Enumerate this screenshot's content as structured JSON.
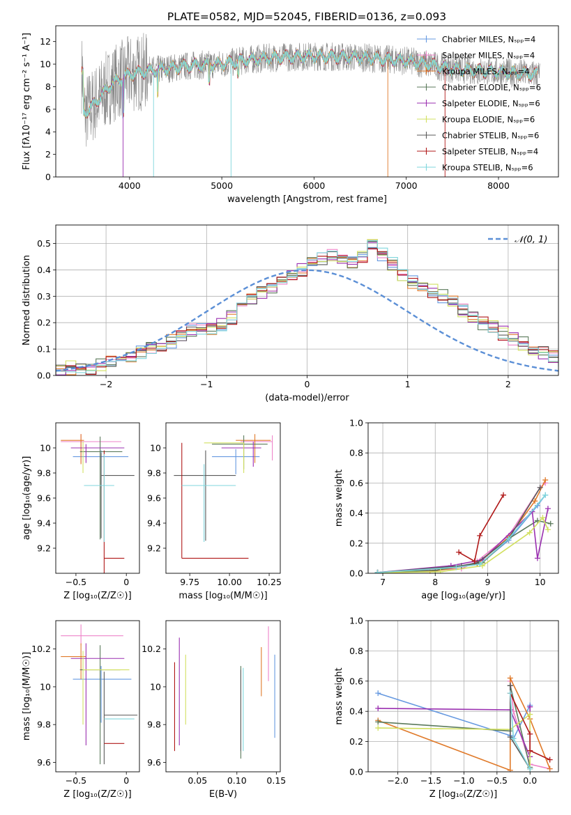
{
  "figure_title": "PLATE=0582, MJD=52045, FIBERID=0136, z=0.093",
  "colors": [
    "#6699e0",
    "#ee82c8",
    "#e07a2a",
    "#5b7a5b",
    "#9a2fb0",
    "#d2e060",
    "#5a5a5a",
    "#b01818",
    "#7fd6dc"
  ],
  "chart_data": [
    {
      "id": "spectrum",
      "type": "line",
      "xlabel": "wavelength [Angstrom, rest frame]",
      "ylabel": "Flux [fλ10⁻¹⁷ erg cm⁻² s⁻¹ A⁻¹]",
      "xlim": [
        3200,
        8650
      ],
      "ylim": [
        0,
        13.4
      ],
      "xticks": [
        4000,
        5000,
        6000,
        7000,
        8000
      ],
      "yticks": [
        0,
        2,
        4,
        6,
        8,
        10,
        12
      ],
      "grid": false,
      "legend_position": "top-right",
      "series": [
        {
          "name": "Chabrier MILES, Nₛₚₚ=4"
        },
        {
          "name": "Salpeter MILES, Nₛₚₚ=4"
        },
        {
          "name": "Kroupa MILES, Nₛₚₚ=4"
        },
        {
          "name": "Chabrier ELODIE, Nₛₚₚ=6"
        },
        {
          "name": "Salpeter ELODIE, Nₛₚₚ=6"
        },
        {
          "name": "Kroupa ELODIE, Nₛₚₚ=6"
        },
        {
          "name": "Chabrier STELIB, Nₛₚₚ=6"
        },
        {
          "name": "Salpeter STELIB, Nₛₚₚ=4"
        },
        {
          "name": "Kroupa STELIB, Nₛₚₚ=6"
        }
      ],
      "continuum": {
        "x": [
          3500,
          3600,
          3800,
          4000,
          4300,
          4700,
          5000,
          5300,
          5600,
          6000,
          6500,
          7000,
          7300,
          7500,
          7800,
          8000,
          8200,
          8400
        ],
        "y": [
          5.6,
          6.3,
          8.2,
          9.1,
          9.5,
          9.9,
          10.0,
          10.4,
          10.6,
          10.7,
          10.6,
          10.3,
          9.9,
          9.6,
          9.4,
          9.3,
          9.2,
          9.1
        ]
      }
    },
    {
      "id": "residuals",
      "type": "step",
      "xlabel": "(data-model)/error",
      "ylabel": "Normed distribution",
      "xlim": [
        -2.5,
        2.5
      ],
      "ylim": [
        0,
        0.57
      ],
      "xticks": [
        -2,
        -1,
        0,
        1,
        2
      ],
      "yticks": [
        0.0,
        0.1,
        0.2,
        0.3,
        0.4,
        0.5
      ],
      "grid": true,
      "legend_position": "top-right",
      "reference": {
        "name": "𝒩(0, 1)",
        "mean": 0,
        "sigma": 1
      },
      "bin_edges_start": -2.5,
      "bin_width": 0.1,
      "base_hist": [
        0.02,
        0.03,
        0.03,
        0.03,
        0.04,
        0.05,
        0.06,
        0.07,
        0.09,
        0.11,
        0.12,
        0.13,
        0.15,
        0.17,
        0.17,
        0.18,
        0.19,
        0.22,
        0.27,
        0.29,
        0.32,
        0.34,
        0.36,
        0.38,
        0.4,
        0.42,
        0.44,
        0.45,
        0.44,
        0.43,
        0.45,
        0.5,
        0.46,
        0.42,
        0.38,
        0.35,
        0.33,
        0.32,
        0.3,
        0.28,
        0.25,
        0.22,
        0.2,
        0.18,
        0.16,
        0.14,
        0.12,
        0.1,
        0.09,
        0.07,
        0.06,
        0.05,
        0.04,
        0.03,
        0.03,
        0.02,
        0.02,
        0.02,
        0.02,
        0.02
      ]
    },
    {
      "id": "age-vs-Z",
      "type": "errorbar",
      "xlabel": "Z [log₁₀(Z/Z☉)]",
      "ylabel": "age  [log₁₀(age/yr)]",
      "xlim": [
        -0.7,
        0.13
      ],
      "ylim": [
        9.0,
        10.2
      ],
      "xticks": [
        -0.5,
        0.0
      ],
      "yticks": [
        9.2,
        9.4,
        9.6,
        9.8,
        10.0
      ],
      "points": [
        {
          "x": -0.25,
          "y": 9.93,
          "xerr": [
            0.28,
            0.27
          ],
          "yerr": [
            0.25,
            0.05
          ]
        },
        {
          "x": -0.45,
          "y": 10.05,
          "xerr": [
            0.2,
            0.4
          ],
          "yerr": [
            0.17,
            0.06
          ]
        },
        {
          "x": -0.45,
          "y": 10.06,
          "xerr": [
            0.2,
            0.03
          ],
          "yerr": [
            0.19,
            0.05
          ]
        },
        {
          "x": -0.26,
          "y": 9.97,
          "xerr": [
            0.2,
            0.22
          ],
          "yerr": [
            0.7,
            0.12
          ]
        },
        {
          "x": -0.4,
          "y": 10.0,
          "xerr": [
            0.15,
            0.38
          ],
          "yerr": [
            0.12,
            0.03
          ]
        },
        {
          "x": -0.43,
          "y": 9.9,
          "xerr": [
            0.0,
            0.0
          ],
          "yerr": [
            0.1,
            0.15
          ]
        },
        {
          "x": -0.25,
          "y": 9.78,
          "xerr": [
            0.0,
            0.33
          ],
          "yerr": [
            0.5,
            0.18
          ]
        },
        {
          "x": -0.22,
          "y": 9.12,
          "xerr": [
            0.0,
            0.2
          ],
          "yerr": [
            0.2,
            0.86
          ]
        },
        {
          "x": -0.22,
          "y": 9.7,
          "xerr": [
            0.2,
            0.1
          ],
          "yerr": [
            0.45,
            0.25
          ]
        }
      ]
    },
    {
      "id": "age-vs-mass",
      "type": "errorbar",
      "xlabel": "mass [log₁₀(M/M☉)]",
      "ylabel": "",
      "xlim": [
        9.6,
        10.32
      ],
      "ylim": [
        9.0,
        10.2
      ],
      "xticks": [
        9.75,
        10.0,
        10.25
      ],
      "xticklabels": [
        "9.75",
        "10.00",
        "10.25"
      ],
      "yticks": [
        9.2,
        9.4,
        9.6,
        9.8,
        10.0
      ],
      "points": [
        {
          "x": 10.04,
          "y": 9.93,
          "xerr": [
            0.15,
            0.15
          ],
          "yerr": [
            0.14,
            0.06
          ]
        },
        {
          "x": 10.27,
          "y": 10.05,
          "xerr": [
            0.2,
            0.0
          ],
          "yerr": [
            0.15,
            0.05
          ]
        },
        {
          "x": 10.16,
          "y": 10.06,
          "xerr": [
            0.12,
            0.1
          ],
          "yerr": [
            0.18,
            0.05
          ]
        },
        {
          "x": 10.09,
          "y": 10.03,
          "xerr": [
            0.2,
            0.15
          ],
          "yerr": [
            0.2,
            0.07
          ]
        },
        {
          "x": 10.15,
          "y": 10.0,
          "xerr": [
            0.2,
            0.05
          ],
          "yerr": [
            0.15,
            0.05
          ]
        },
        {
          "x": 10.09,
          "y": 10.04,
          "xerr": [
            0.25,
            0.0
          ],
          "yerr": [
            0.24,
            0.0
          ]
        },
        {
          "x": 9.85,
          "y": 9.78,
          "xerr": [
            0.2,
            0.19
          ],
          "yerr": [
            0.52,
            0.2
          ]
        },
        {
          "x": 9.7,
          "y": 9.12,
          "xerr": [
            0.0,
            0.42
          ],
          "yerr": [
            0.0,
            0.92
          ]
        },
        {
          "x": 9.84,
          "y": 9.7,
          "xerr": [
            0.14,
            0.2
          ],
          "yerr": [
            0.45,
            0.17
          ]
        }
      ]
    },
    {
      "id": "massweight-vs-age",
      "type": "line",
      "xlabel": "age  [log₁₀(age/yr)]",
      "ylabel": "mass weight",
      "xlim": [
        6.72,
        10.35
      ],
      "ylim": [
        0.0,
        1.0
      ],
      "xticks": [
        7,
        8,
        9,
        10
      ],
      "yticks": [
        0.0,
        0.2,
        0.4,
        0.6,
        0.8,
        1.0
      ],
      "grid": true,
      "series": [
        {
          "x": [
            6.9,
            8.4,
            8.85,
            9.4,
            9.95,
            10.1
          ],
          "y": [
            0.005,
            0.04,
            0.06,
            0.22,
            0.45,
            0.52
          ]
        },
        {
          "x": [
            6.9,
            8.5,
            8.8,
            9.4,
            10.0,
            10.1
          ],
          "y": [
            0.005,
            0.03,
            0.08,
            0.25,
            0.57,
            0.6
          ]
        },
        {
          "x": [
            6.9,
            7.9,
            8.8,
            9.4,
            9.9,
            10.1
          ],
          "y": [
            0.005,
            0.01,
            0.06,
            0.24,
            0.48,
            0.62
          ]
        },
        {
          "x": [
            6.9,
            8.0,
            8.9,
            9.4,
            9.95,
            10.2
          ],
          "y": [
            0.005,
            0.02,
            0.07,
            0.23,
            0.35,
            0.33
          ]
        },
        {
          "x": [
            6.9,
            8.3,
            8.9,
            9.85,
            9.95,
            10.15
          ],
          "y": [
            0.005,
            0.05,
            0.09,
            0.41,
            0.1,
            0.43
          ]
        },
        {
          "x": [
            6.9,
            8.1,
            8.9,
            9.8,
            10.05,
            10.15
          ],
          "y": [
            0.005,
            0.01,
            0.05,
            0.27,
            0.37,
            0.29
          ]
        },
        {
          "x": [
            6.9,
            8.5,
            8.8,
            9.4,
            10.0
          ],
          "y": [
            0.005,
            0.05,
            0.07,
            0.23,
            0.57
          ]
        },
        {
          "x": [
            8.45,
            8.75,
            8.85,
            9.3
          ],
          "y": [
            0.14,
            0.08,
            0.25,
            0.52
          ]
        },
        {
          "x": [
            6.9,
            8.4,
            8.85,
            9.4,
            10.1
          ],
          "y": [
            0.005,
            0.04,
            0.06,
            0.23,
            0.52
          ]
        }
      ]
    },
    {
      "id": "mass-vs-Z",
      "type": "errorbar",
      "xlabel": "Z [log₁₀(Z/Z☉)]",
      "ylabel": "mass [log₁₀(M/M☉)]",
      "xlim": [
        -0.7,
        0.13
      ],
      "ylim": [
        9.55,
        10.35
      ],
      "xticks": [
        -0.5,
        0.0
      ],
      "yticks": [
        9.6,
        9.8,
        10.0,
        10.2
      ],
      "points": [
        {
          "x": -0.25,
          "y": 10.04,
          "xerr": [
            0.28,
            0.3
          ],
          "yerr": [
            0.23,
            0.07
          ]
        },
        {
          "x": -0.45,
          "y": 10.27,
          "xerr": [
            0.2,
            0.42
          ],
          "yerr": [
            0.05,
            0.06
          ]
        },
        {
          "x": -0.45,
          "y": 10.16,
          "xerr": [
            0.2,
            0.05
          ],
          "yerr": [
            0.12,
            0.07
          ]
        },
        {
          "x": -0.26,
          "y": 10.09,
          "xerr": [
            0.2,
            0.2
          ],
          "yerr": [
            0.5,
            0.13
          ]
        },
        {
          "x": -0.4,
          "y": 10.15,
          "xerr": [
            0.15,
            0.38
          ],
          "yerr": [
            0.46,
            0.08
          ]
        },
        {
          "x": -0.43,
          "y": 10.09,
          "xerr": [
            0.0,
            0.46
          ],
          "yerr": [
            0.29,
            0.1
          ]
        },
        {
          "x": -0.22,
          "y": 9.85,
          "xerr": [
            0.0,
            0.33
          ],
          "yerr": [
            0.26,
            0.23
          ]
        },
        {
          "x": -0.22,
          "y": 9.7,
          "xerr": [
            0.0,
            0.2
          ],
          "yerr": [
            0.0,
            0.0
          ]
        },
        {
          "x": -0.22,
          "y": 9.83,
          "xerr": [
            0.0,
            0.3
          ],
          "yerr": [
            0.0,
            0.0
          ]
        }
      ]
    },
    {
      "id": "mass-vs-ebv",
      "type": "errorbar",
      "xlabel": "E(B-V)",
      "ylabel": "",
      "xlim": [
        0.01,
        0.155
      ],
      "ylim": [
        9.55,
        10.35
      ],
      "xticks": [
        0.05,
        0.1,
        0.15
      ],
      "xticklabels": [
        "0.05",
        "0.10",
        "0.15"
      ],
      "yticks": [
        9.6,
        9.8,
        10.0,
        10.2
      ],
      "points": [
        {
          "x": 0.148,
          "y": 9.93,
          "xerr": [
            0,
            0
          ],
          "yerr": [
            0.2,
            0.24
          ]
        },
        {
          "x": 0.14,
          "y": 10.18,
          "xerr": [
            0,
            0
          ],
          "yerr": [
            0.15,
            0.14
          ]
        },
        {
          "x": 0.131,
          "y": 10.06,
          "xerr": [
            0,
            0
          ],
          "yerr": [
            0.11,
            0.15
          ]
        },
        {
          "x": 0.105,
          "y": 9.84,
          "xerr": [
            0,
            0
          ],
          "yerr": [
            0.22,
            0.27
          ]
        },
        {
          "x": 0.027,
          "y": 9.98,
          "xerr": [
            0,
            0
          ],
          "yerr": [
            0.29,
            0.28
          ]
        },
        {
          "x": 0.035,
          "y": 9.99,
          "xerr": [
            0,
            0
          ],
          "yerr": [
            0.19,
            0.18
          ]
        },
        {
          "x": 0.105,
          "y": 9.82,
          "xerr": [
            0,
            0
          ],
          "yerr": [
            0.16,
            0.27
          ]
        },
        {
          "x": 0.021,
          "y": 9.84,
          "xerr": [
            0,
            0
          ],
          "yerr": [
            0.18,
            0.29
          ]
        },
        {
          "x": 0.108,
          "y": 9.84,
          "xerr": [
            0,
            0
          ],
          "yerr": [
            0.18,
            0.26
          ]
        }
      ]
    },
    {
      "id": "massweight-vs-Z",
      "type": "line",
      "xlabel": "Z [log₁₀(Z/Z☉)]",
      "ylabel": "mass weight",
      "xlim": [
        -2.45,
        0.43
      ],
      "ylim": [
        0.0,
        1.0
      ],
      "xticks": [
        -2.0,
        -1.5,
        -1.0,
        -0.5,
        0.0
      ],
      "xticklabels": [
        "−2.0",
        "−1.5",
        "−1.0",
        "−0.5",
        "0.0"
      ],
      "yticks": [
        0.0,
        0.2,
        0.4,
        0.6,
        0.8,
        1.0
      ],
      "grid": true,
      "series": [
        {
          "x": [
            -2.3,
            -0.3,
            -0.25,
            0.0,
            0.0
          ],
          "y": [
            0.52,
            0.24,
            0.22,
            0.44,
            0.05
          ]
        },
        {
          "x": [
            -0.3,
            -0.25,
            0.0,
            0.3
          ],
          "y": [
            0.6,
            0.4,
            0.05,
            0.02
          ]
        },
        {
          "x": [
            -2.3,
            -0.3,
            -0.3,
            0.0,
            0.3
          ],
          "y": [
            0.34,
            0.01,
            0.62,
            0.35,
            0.02
          ]
        },
        {
          "x": [
            -2.3,
            -0.3,
            -0.3,
            0.0
          ],
          "y": [
            0.33,
            0.27,
            0.57,
            0.03
          ]
        },
        {
          "x": [
            -2.3,
            -0.3,
            0.0,
            0.0
          ],
          "y": [
            0.42,
            0.41,
            0.1,
            0.43
          ]
        },
        {
          "x": [
            -2.3,
            -0.3,
            0.0,
            0.0
          ],
          "y": [
            0.29,
            0.28,
            0.38,
            0.02
          ]
        },
        {
          "x": [
            -0.3,
            -0.3,
            0.0
          ],
          "y": [
            0.57,
            0.23,
            0.02
          ]
        },
        {
          "x": [
            -0.3,
            0.0,
            0.0,
            0.3
          ],
          "y": [
            0.52,
            0.25,
            0.14,
            0.08
          ]
        },
        {
          "x": [
            -0.3,
            -0.25,
            0.0
          ],
          "y": [
            0.52,
            0.22,
            0.02
          ]
        }
      ]
    }
  ]
}
